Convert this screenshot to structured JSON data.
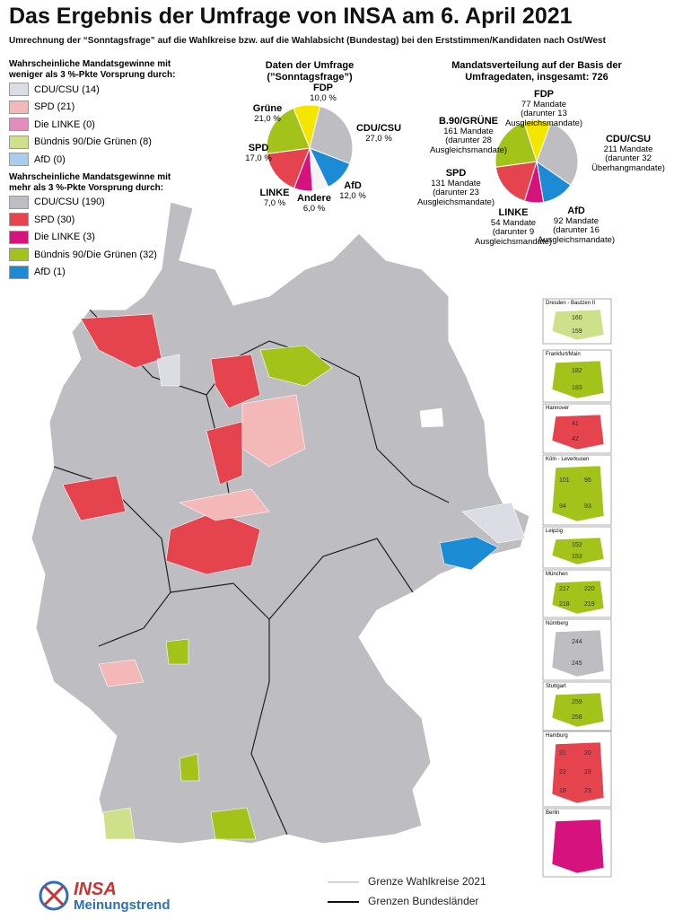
{
  "title": "Das Ergebnis der Umfrage von INSA am 6. April 2021",
  "subtitle": "Umrechnung der “Sonntagsfrage” auf die Wahlkreise bzw. auf die Wahlabsicht (Bundestag) bei den Erststimmen/Kandidaten nach Ost/West",
  "legend": [
    {
      "heading": "Wahrscheinliche Mandatsgewinne mit weniger als 3 %-Pkte Vorsprung durch:",
      "items": [
        {
          "label": "CDU/CSU (14)",
          "color": "#dcdce4"
        },
        {
          "label": "SPD (21)",
          "color": "#f5b8b8"
        },
        {
          "label": "Die LINKE (0)",
          "color": "#e48cc0"
        },
        {
          "label": "Bündnis 90/Die Grünen (8)",
          "color": "#cfe08a"
        },
        {
          "label": "AfD (0)",
          "color": "#a8cdee"
        }
      ]
    },
    {
      "heading": "Wahrscheinliche Mandatsgewinne mit mehr als 3 %-Pkte Vorsprung durch:",
      "items": [
        {
          "label": "CDU/CSU (190)",
          "color": "#bdbdc2"
        },
        {
          "label": "SPD (30)",
          "color": "#e5434d"
        },
        {
          "label": "Die LINKE (3)",
          "color": "#d6127e"
        },
        {
          "label": "Bündnis 90/Die Grünen (32)",
          "color": "#a3c31a"
        },
        {
          "label": "AfD (1)",
          "color": "#1b8bd6"
        }
      ]
    }
  ],
  "chart_data": [
    {
      "type": "pie",
      "title": "Daten der Umfrage",
      "subtitle": "(”Sonntagsfrage”)",
      "categories": [
        "FDP",
        "CDU/CSU",
        "AfD",
        "Andere",
        "LINKE",
        "SPD",
        "Grüne"
      ],
      "values": [
        10,
        27,
        12,
        6,
        7,
        17,
        21
      ],
      "value_labels": [
        "10,0 %",
        "27,0 %",
        "12,0 %",
        "6,0 %",
        "7,0 %",
        "17,0 %",
        "21,0 %"
      ],
      "colors": [
        "#f5e600",
        "#bdbdc2",
        "#1b8bd6",
        "#f4f4f4",
        "#d6127e",
        "#e5434d",
        "#a3c31a"
      ]
    },
    {
      "type": "pie",
      "title": "Mandatsverteilung auf der Basis der Umfragedaten, insgesamt: 726",
      "categories": [
        "FDP",
        "CDU/CSU",
        "AfD",
        "LINKE",
        "SPD",
        "B.90/GRÜNE"
      ],
      "values": [
        77,
        211,
        92,
        54,
        131,
        161
      ],
      "value_labels": [
        "77 Mandate",
        "211 Mandate",
        "92 Mandate",
        "54 Mandate",
        "131 Mandate",
        "161 Mandate"
      ],
      "notes": [
        "(darunter 13 Ausgleichsmandate)",
        "(darunter 32 Überhangmandate)",
        "(darunter 16 Ausgleichsmandate)",
        "(darunter 9 Ausgleichsmandate)",
        "(darunter 23 Ausgleichsmandate)",
        "(darunter 28 Ausgleichsmandate)"
      ],
      "colors": [
        "#f5e600",
        "#bdbdc2",
        "#1b8bd6",
        "#d6127e",
        "#e5434d",
        "#a3c31a"
      ]
    }
  ],
  "insets": [
    {
      "title": "Dresden - Bautzen II",
      "color": "#cfe08a",
      "labels": [
        "160",
        "159"
      ]
    },
    {
      "title": "Frankfurt/Main",
      "color": "#a3c31a",
      "labels": [
        "182",
        "183"
      ]
    },
    {
      "title": "Hannover",
      "color": "#e5434d",
      "labels": [
        "41",
        "42"
      ]
    },
    {
      "title": "Köln - Leverkusen",
      "color": "#a3c31a",
      "labels": [
        "101",
        "95",
        "94",
        "93"
      ]
    },
    {
      "title": "Leipzig",
      "color": "#a3c31a",
      "labels": [
        "152",
        "153"
      ]
    },
    {
      "title": "München",
      "color": "#a3c31a",
      "labels": [
        "217",
        "220",
        "218",
        "219"
      ]
    },
    {
      "title": "Nürnberg",
      "color": "#bdbdc2",
      "labels": [
        "244",
        "245"
      ]
    },
    {
      "title": "Stuttgart",
      "color": "#a3c31a",
      "labels": [
        "259",
        "258"
      ]
    },
    {
      "title": "Hamburg",
      "color": "#e5434d",
      "labels": [
        "21",
        "20",
        "22",
        "19",
        "18",
        "23"
      ]
    },
    {
      "title": "Berlin",
      "color": "#d6127e",
      "labels": []
    }
  ],
  "map_legend": [
    "Grenze Wahlkreise 2021",
    "Grenzen Bundesländer"
  ],
  "logo": {
    "name": "INSA",
    "tagline": "Meinungstrend"
  }
}
